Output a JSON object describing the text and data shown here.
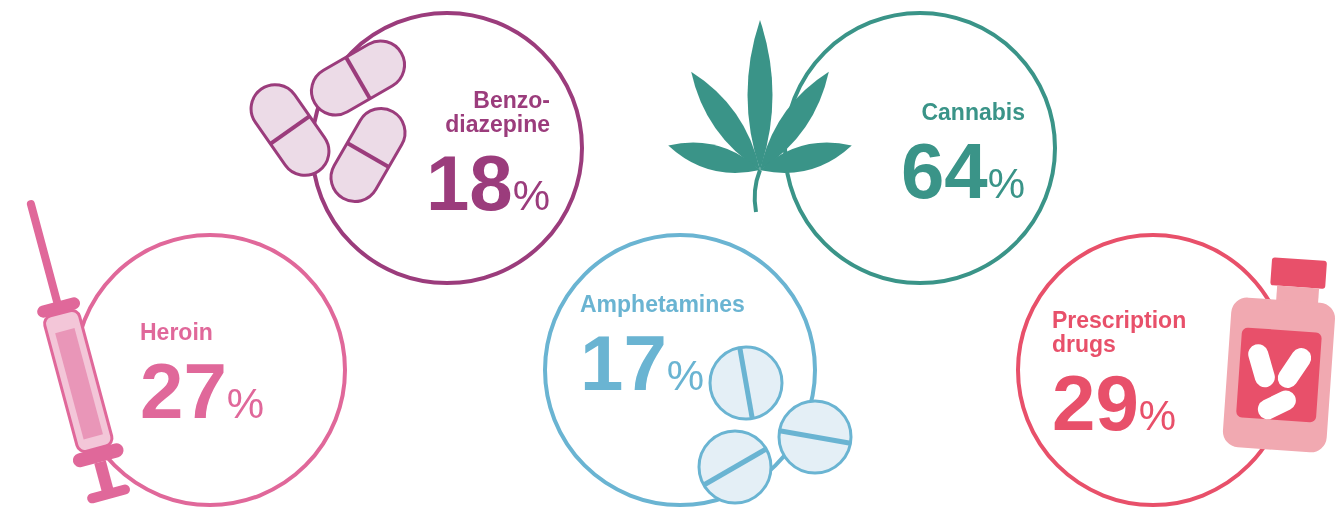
{
  "chart_data": {
    "type": "other",
    "categories": [
      "Heroin",
      "Benzo-\ndiazepine",
      "Cannabis",
      "Amphetamines",
      "Prescription\ndrugs"
    ],
    "values": [
      27,
      18,
      64,
      17,
      29
    ],
    "value_labels": [
      "27%",
      "18%",
      "64%",
      "17%",
      "29%"
    ],
    "colors": [
      "#e0689a",
      "#9b3c7c",
      "#3a9488",
      "#6ab4d2",
      "#e8506a"
    ]
  }
}
